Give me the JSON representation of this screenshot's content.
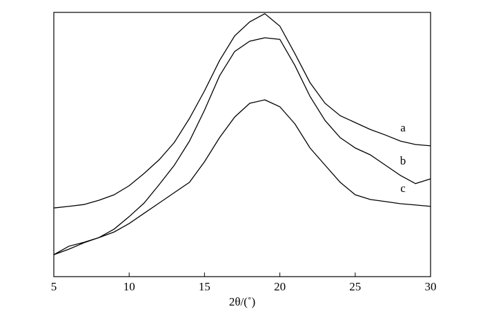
{
  "chart_data": {
    "type": "line",
    "xlabel": "2θ/(˚)",
    "x": [
      5,
      6,
      7,
      8,
      9,
      10,
      11,
      12,
      13,
      14,
      15,
      16,
      17,
      18,
      19,
      20,
      21,
      22,
      23,
      24,
      25,
      26,
      27,
      28,
      29,
      30
    ],
    "xlim": [
      5,
      30
    ],
    "xticks": [
      5,
      10,
      15,
      20,
      25,
      30
    ],
    "ylim": [
      0,
      100
    ],
    "series": [
      {
        "name": "a",
        "color": "#000000",
        "values": [
          26.0,
          26.6,
          27.3,
          28.9,
          31.0,
          34.4,
          39.1,
          44.3,
          50.8,
          59.9,
          70.3,
          81.8,
          91.1,
          96.4,
          99.5,
          94.8,
          84.4,
          73.4,
          65.6,
          60.9,
          58.3,
          55.7,
          53.6,
          51.3,
          50.0,
          49.5
        ]
      },
      {
        "name": "b",
        "color": "#000000",
        "values": [
          8.3,
          10.4,
          12.8,
          14.8,
          18.0,
          22.7,
          27.9,
          34.9,
          42.2,
          51.3,
          63.0,
          76.0,
          85.2,
          89.1,
          90.4,
          89.8,
          79.9,
          68.2,
          59.1,
          52.6,
          48.7,
          46.1,
          42.2,
          38.3,
          35.2,
          37.0
        ]
      },
      {
        "name": "c",
        "color": "#000000",
        "values": [
          8.3,
          11.5,
          13.0,
          14.8,
          16.9,
          20.1,
          24.0,
          27.9,
          31.8,
          35.7,
          43.5,
          52.6,
          60.4,
          65.6,
          66.9,
          64.3,
          57.8,
          48.7,
          42.2,
          35.7,
          31.0,
          29.2,
          28.4,
          27.6,
          27.1,
          26.6
        ]
      }
    ]
  }
}
